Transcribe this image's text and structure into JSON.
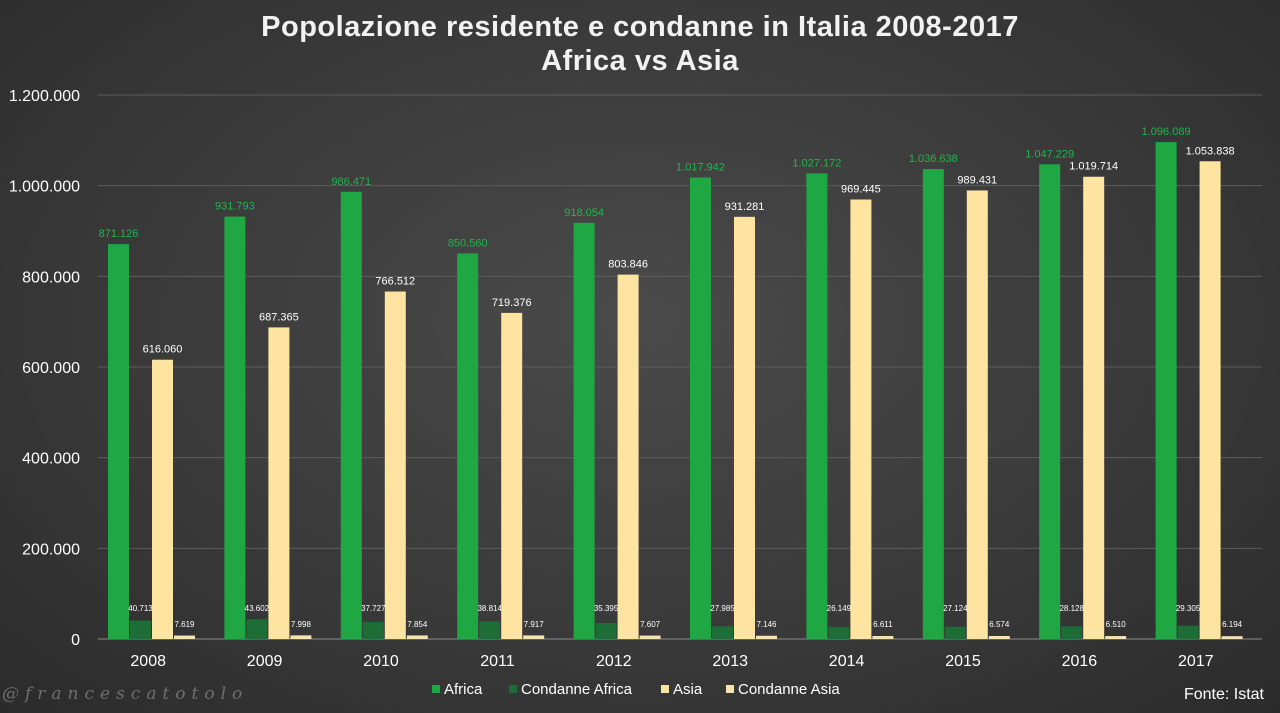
{
  "chart_data": {
    "type": "bar",
    "title_line1": "Popolazione residente e condanne in Italia 2008-2017",
    "title_line2": "Africa vs Asia",
    "categories": [
      "2008",
      "2009",
      "2010",
      "2011",
      "2012",
      "2013",
      "2014",
      "2015",
      "2016",
      "2017"
    ],
    "y_ticks": [
      "0",
      "200.000",
      "400.000",
      "600.000",
      "800.000",
      "1.000.000",
      "1.200.000"
    ],
    "ylim": [
      0,
      1200000
    ],
    "grid": true,
    "legend_position": "bottom",
    "series": [
      {
        "name": "Africa",
        "color": "#1ea743",
        "values": [
          871126,
          931793,
          986471,
          850560,
          918054,
          1017942,
          1027172,
          1036638,
          1047229,
          1096089
        ],
        "labels": [
          "871.126",
          "931.793",
          "986.471",
          "850.560",
          "918.054",
          "1.017.942",
          "1.027.172",
          "1.036.638",
          "1.047.229",
          "1.096.089"
        ]
      },
      {
        "name": "Condanne Africa",
        "color": "#1d6e36",
        "values": [
          40713,
          43602,
          37727,
          38814,
          35395,
          27985,
          26149,
          27124,
          28128,
          29305
        ],
        "labels": [
          "40.713",
          "43.602",
          "37.727",
          "38.814",
          "35.395",
          "27.985",
          "26.149",
          "27.124",
          "28.128",
          "29.305"
        ]
      },
      {
        "name": "Asia",
        "color": "#fde4a0",
        "values": [
          616060,
          687365,
          766512,
          719376,
          803846,
          931281,
          969445,
          989431,
          1019714,
          1053838
        ],
        "labels": [
          "616.060",
          "687.365",
          "766.512",
          "719.376",
          "803.846",
          "931.281",
          "969.445",
          "989.431",
          "1.019.714",
          "1.053.838"
        ]
      },
      {
        "name": "Condanne Asia",
        "color": "#f7e3b0",
        "values": [
          7619,
          7998,
          7854,
          7917,
          7607,
          7146,
          6611,
          6574,
          6510,
          6194
        ],
        "labels": [
          "7.619",
          "7.998",
          "7.854",
          "7.917",
          "7.607",
          "7.146",
          "6.611",
          "6.574",
          "6.510",
          "6.194"
        ]
      }
    ]
  },
  "watermark": "@francescatotolo",
  "source": "Fonte: Istat"
}
